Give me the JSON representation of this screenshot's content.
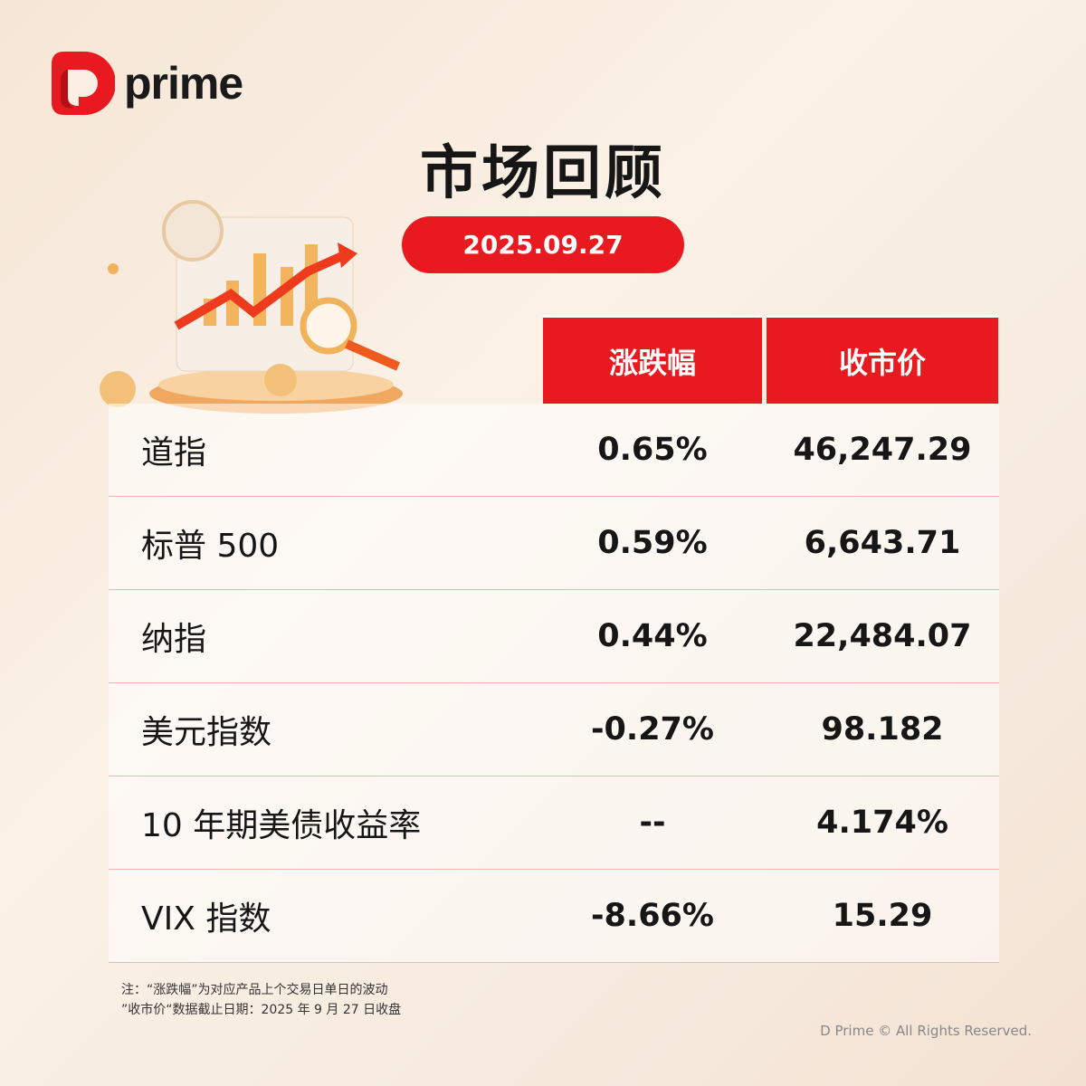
{
  "brand": {
    "name": "prime",
    "color": "#e8191f"
  },
  "title": "市场回顾",
  "date": "2025.09.27",
  "table": {
    "headers": [
      "涨跌幅",
      "收市价"
    ],
    "rows": [
      {
        "name": "道指",
        "change": "0.65%",
        "close": "46,247.29"
      },
      {
        "name": "标普 500",
        "change": "0.59%",
        "close": "6,643.71"
      },
      {
        "name": "纳指",
        "change": "0.44%",
        "close": "22,484.07"
      },
      {
        "name": "美元指数",
        "change": "-0.27%",
        "close": "98.182"
      },
      {
        "name": "10 年期美债收益率",
        "change": "--",
        "close": "4.174%"
      },
      {
        "name": "VIX 指数",
        "change": "-8.66%",
        "close": "15.29"
      }
    ]
  },
  "notes": [
    "注：“涨跌幅”为对应产品上个交易日单日的波动",
    "”收市价“数据截止日期：2025 年 9 月 27 日收盘"
  ],
  "copyright": "D Prime © All Rights Reserved."
}
